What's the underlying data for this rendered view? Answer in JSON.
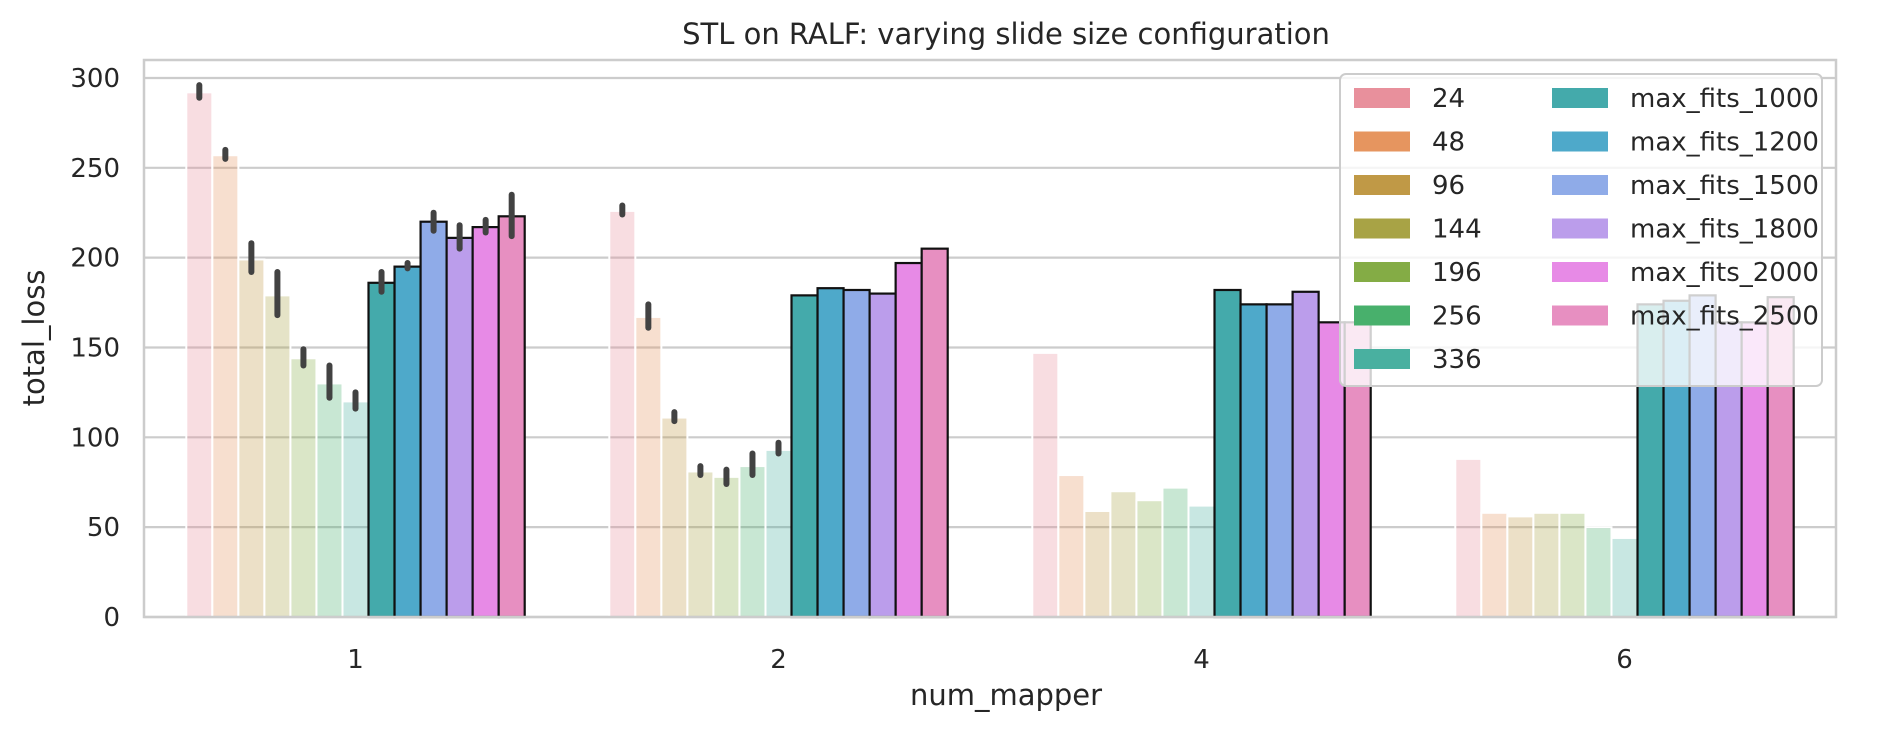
{
  "chart_data": {
    "type": "bar",
    "title": "STL on RALF: varying slide size configuration",
    "xlabel": "num_mapper",
    "ylabel": "total_loss",
    "ylim": [
      0,
      310
    ],
    "yticks": [
      0,
      50,
      100,
      150,
      200,
      250,
      300
    ],
    "categories": [
      "1",
      "2",
      "4",
      "6"
    ],
    "grid": true,
    "legend_position": "top-right",
    "legend_columns": 2,
    "series": [
      {
        "name": "24",
        "color": "#e8909c",
        "faded": true,
        "values": [
          292,
          226,
          147,
          88
        ],
        "errors": [
          [
            289,
            296
          ],
          [
            224,
            229
          ],
          null,
          null
        ]
      },
      {
        "name": "48",
        "color": "#e6955f",
        "faded": true,
        "values": [
          257,
          167,
          79,
          58
        ],
        "errors": [
          [
            255,
            260
          ],
          [
            161,
            174
          ],
          null,
          null
        ]
      },
      {
        "name": "96",
        "color": "#c09946",
        "faded": true,
        "values": [
          199,
          111,
          59,
          56
        ],
        "errors": [
          [
            192,
            208
          ],
          [
            109,
            114
          ],
          null,
          null
        ]
      },
      {
        "name": "144",
        "color": "#a8a345",
        "faded": true,
        "values": [
          179,
          81,
          70,
          58
        ],
        "errors": [
          [
            168,
            192
          ],
          [
            79,
            84
          ],
          null,
          null
        ]
      },
      {
        "name": "196",
        "color": "#84ac45",
        "faded": true,
        "values": [
          144,
          78,
          65,
          58
        ],
        "errors": [
          [
            140,
            149
          ],
          [
            74,
            82
          ],
          null,
          null
        ]
      },
      {
        "name": "256",
        "color": "#48b06c",
        "faded": true,
        "values": [
          130,
          84,
          72,
          50
        ],
        "errors": [
          [
            122,
            140
          ],
          [
            79,
            91
          ],
          null,
          null
        ]
      },
      {
        "name": "336",
        "color": "#49b0a0",
        "faded": true,
        "values": [
          120,
          93,
          62,
          44
        ],
        "errors": [
          [
            116,
            125
          ],
          [
            91,
            97
          ],
          null,
          null
        ]
      },
      {
        "name": "max_fits_1000",
        "color": "#44aaab",
        "faded": false,
        "values": [
          186,
          179,
          182,
          174
        ],
        "errors": [
          [
            181,
            192
          ],
          null,
          null,
          null
        ]
      },
      {
        "name": "max_fits_1200",
        "color": "#4ea9ca",
        "faded": false,
        "values": [
          195,
          183,
          174,
          176
        ],
        "errors": [
          [
            194,
            197
          ],
          null,
          null,
          null
        ]
      },
      {
        "name": "max_fits_1500",
        "color": "#8fabe8",
        "faded": false,
        "values": [
          220,
          182,
          174,
          179
        ],
        "errors": [
          [
            215,
            225
          ],
          null,
          null,
          null
        ]
      },
      {
        "name": "max_fits_1800",
        "color": "#bb9deb",
        "faded": false,
        "values": [
          211,
          180,
          181,
          164
        ],
        "errors": [
          [
            205,
            218
          ],
          null,
          null,
          null
        ]
      },
      {
        "name": "max_fits_2000",
        "color": "#e78ae6",
        "faded": false,
        "values": [
          217,
          197,
          164,
          164
        ],
        "errors": [
          [
            214,
            221
          ],
          null,
          null,
          null
        ]
      },
      {
        "name": "max_fits_2500",
        "color": "#e78fc1",
        "faded": false,
        "values": [
          223,
          205,
          164,
          178
        ],
        "errors": [
          [
            212,
            235
          ],
          null,
          null,
          null
        ]
      }
    ]
  }
}
